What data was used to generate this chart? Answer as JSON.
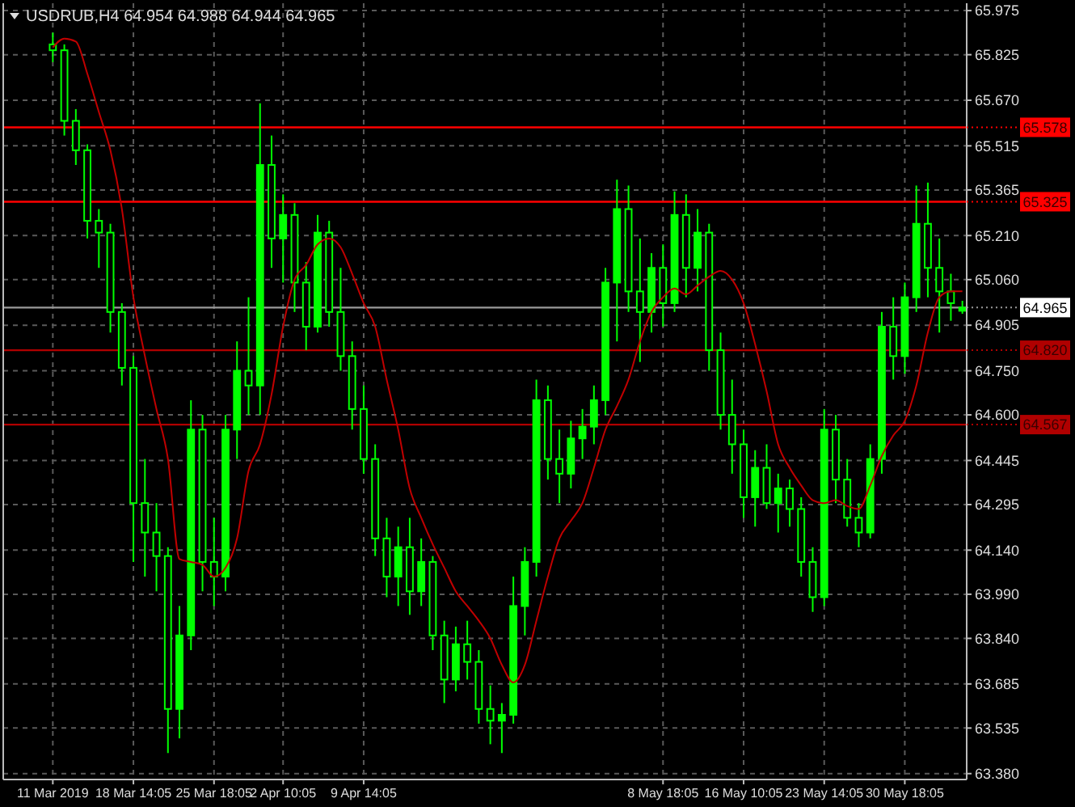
{
  "chart_data": {
    "type": "candlestick",
    "title": "USDRUB,H4  64.954 64.988 64.944 64.965",
    "categories": [
      "11 Mar 2019",
      null,
      null,
      null,
      null,
      null,
      null,
      "18 Mar 14:05",
      null,
      null,
      null,
      null,
      null,
      null,
      "25 Mar 18:05",
      null,
      null,
      null,
      null,
      null,
      "2 Apr 10:05",
      null,
      null,
      null,
      null,
      null,
      null,
      "9 Apr 14:05",
      null,
      null,
      null,
      null,
      null,
      null,
      null,
      null,
      null,
      null,
      null,
      null,
      null,
      null,
      null,
      null,
      null,
      null,
      null,
      null,
      null,
      null,
      null,
      null,
      null,
      "8 May 18:05",
      null,
      null,
      null,
      null,
      null,
      null,
      "16 May 10:05",
      null,
      null,
      null,
      null,
      null,
      null,
      "23 May 14:05",
      null,
      null,
      null,
      null,
      null,
      null,
      "30 May 18:05",
      null,
      null,
      null,
      null,
      null
    ],
    "series": [
      {
        "color": "#00ff00",
        "ohlc": [
          [
            65.86,
            65.9,
            65.8,
            65.84
          ],
          [
            65.84,
            65.86,
            65.55,
            65.6
          ],
          [
            65.6,
            65.64,
            65.45,
            65.5
          ],
          [
            65.5,
            65.52,
            65.2,
            65.26
          ],
          [
            65.26,
            65.3,
            65.1,
            65.22
          ],
          [
            65.22,
            65.25,
            64.88,
            64.95
          ],
          [
            64.95,
            64.98,
            64.7,
            64.76
          ],
          [
            64.76,
            64.8,
            64.1,
            64.3
          ],
          [
            64.3,
            64.45,
            64.05,
            64.2
          ],
          [
            64.2,
            64.3,
            64.0,
            64.12
          ],
          [
            64.12,
            64.15,
            63.45,
            63.6
          ],
          [
            63.6,
            63.95,
            63.5,
            63.85
          ],
          [
            63.85,
            64.65,
            63.8,
            64.55
          ],
          [
            64.55,
            64.6,
            64.0,
            64.1
          ],
          [
            64.1,
            64.25,
            63.95,
            64.05
          ],
          [
            64.05,
            64.6,
            64.0,
            64.55
          ],
          [
            64.55,
            64.85,
            64.45,
            64.75
          ],
          [
            64.75,
            65.0,
            64.6,
            64.7
          ],
          [
            64.7,
            65.66,
            64.6,
            65.45
          ],
          [
            65.45,
            65.55,
            65.1,
            65.2
          ],
          [
            65.2,
            65.35,
            65.05,
            65.28
          ],
          [
            65.28,
            65.32,
            64.95,
            65.05
          ],
          [
            65.05,
            65.12,
            64.82,
            64.9
          ],
          [
            64.9,
            65.28,
            64.88,
            65.22
          ],
          [
            65.22,
            65.26,
            64.9,
            64.95
          ],
          [
            64.95,
            65.1,
            64.75,
            64.8
          ],
          [
            64.8,
            64.85,
            64.55,
            64.62
          ],
          [
            64.62,
            64.7,
            64.4,
            64.45
          ],
          [
            64.45,
            64.5,
            64.12,
            64.18
          ],
          [
            64.18,
            64.25,
            63.98,
            64.05
          ],
          [
            64.05,
            64.22,
            63.95,
            64.15
          ],
          [
            64.15,
            64.25,
            63.92,
            64.0
          ],
          [
            64.0,
            64.18,
            63.95,
            64.1
          ],
          [
            64.1,
            64.12,
            63.8,
            63.85
          ],
          [
            63.85,
            63.9,
            63.62,
            63.7
          ],
          [
            63.7,
            63.88,
            63.66,
            63.82
          ],
          [
            63.82,
            63.9,
            63.7,
            63.76
          ],
          [
            63.76,
            63.8,
            63.55,
            63.6
          ],
          [
            63.6,
            63.68,
            63.48,
            63.56
          ],
          [
            63.56,
            63.62,
            63.45,
            63.58
          ],
          [
            63.58,
            64.05,
            63.55,
            63.95
          ],
          [
            63.95,
            64.15,
            63.85,
            64.1
          ],
          [
            64.1,
            64.72,
            64.05,
            64.65
          ],
          [
            64.65,
            64.7,
            64.38,
            64.45
          ],
          [
            64.45,
            64.55,
            64.3,
            64.4
          ],
          [
            64.4,
            64.58,
            64.35,
            64.52
          ],
          [
            64.52,
            64.62,
            64.45,
            64.56
          ],
          [
            64.56,
            64.7,
            64.5,
            64.65
          ],
          [
            64.65,
            65.1,
            64.6,
            65.05
          ],
          [
            65.05,
            65.4,
            64.85,
            65.3
          ],
          [
            65.3,
            65.38,
            64.95,
            65.02
          ],
          [
            65.02,
            65.2,
            64.78,
            64.95
          ],
          [
            64.95,
            65.15,
            64.88,
            65.1
          ],
          [
            65.1,
            65.18,
            64.9,
            64.98
          ],
          [
            64.98,
            65.36,
            64.95,
            65.28
          ],
          [
            65.28,
            65.35,
            65.0,
            65.1
          ],
          [
            65.1,
            65.3,
            65.02,
            65.22
          ],
          [
            65.22,
            65.25,
            64.75,
            64.82
          ],
          [
            64.82,
            64.88,
            64.55,
            64.6
          ],
          [
            64.6,
            64.72,
            64.4,
            64.5
          ],
          [
            64.5,
            64.55,
            64.25,
            64.32
          ],
          [
            64.32,
            64.48,
            64.22,
            64.42
          ],
          [
            64.42,
            64.5,
            64.28,
            64.3
          ],
          [
            64.3,
            64.4,
            64.2,
            64.35
          ],
          [
            64.35,
            64.38,
            64.22,
            64.28
          ],
          [
            64.28,
            64.32,
            64.05,
            64.1
          ],
          [
            64.1,
            64.15,
            63.93,
            63.98
          ],
          [
            63.98,
            64.62,
            63.95,
            64.55
          ],
          [
            64.55,
            64.6,
            64.3,
            64.38
          ],
          [
            64.38,
            64.45,
            64.22,
            64.25
          ],
          [
            64.25,
            64.3,
            64.15,
            64.2
          ],
          [
            64.2,
            64.5,
            64.18,
            64.45
          ],
          [
            64.45,
            64.95,
            64.4,
            64.9
          ],
          [
            64.9,
            65.0,
            64.72,
            64.8
          ],
          [
            64.8,
            65.05,
            64.74,
            65.0
          ],
          [
            65.0,
            65.38,
            64.95,
            65.25
          ],
          [
            65.25,
            65.39,
            65.0,
            65.1
          ],
          [
            65.1,
            65.2,
            64.88,
            65.02
          ],
          [
            65.02,
            65.08,
            64.92,
            64.98
          ],
          [
            64.954,
            64.988,
            64.944,
            64.965
          ]
        ]
      },
      {
        "type": "line",
        "color": "#c00000",
        "values": [
          65.85,
          65.88,
          65.87,
          65.76,
          65.63,
          65.5,
          65.3,
          65.0,
          64.8,
          64.62,
          64.45,
          64.11,
          64.1,
          64.09,
          64.05,
          64.08,
          64.18,
          64.41,
          64.5,
          64.67,
          64.9,
          65.06,
          65.11,
          65.18,
          65.2,
          65.17,
          65.08,
          64.98,
          64.9,
          64.72,
          64.55,
          64.35,
          64.25,
          64.16,
          64.08,
          64.0,
          63.95,
          63.9,
          63.84,
          63.75,
          63.69,
          63.75,
          63.9,
          64.05,
          64.18,
          64.24,
          64.3,
          64.42,
          64.55,
          64.63,
          64.72,
          64.85,
          64.95,
          65.0,
          65.03,
          65.01,
          65.04,
          65.07,
          65.09,
          65.06,
          64.98,
          64.84,
          64.68,
          64.5,
          64.42,
          64.36,
          64.31,
          64.3,
          64.31,
          64.29,
          64.28,
          64.36,
          64.46,
          64.53,
          64.58,
          64.7,
          64.88,
          65.0,
          65.02,
          65.02
        ]
      }
    ],
    "ylim": [
      63.36,
      66.0
    ],
    "yticks": [
      65.975,
      65.825,
      {
        "value": 65.67,
        "label": "65.670"
      },
      65.515,
      65.365,
      {
        "value": 65.21,
        "label": "65.210"
      },
      {
        "value": 65.06,
        "label": "65.060"
      },
      64.905,
      {
        "value": 64.75,
        "label": "64.750"
      },
      {
        "value": 64.6,
        "label": "64.600"
      },
      64.445,
      64.295,
      {
        "value": 64.14,
        "label": "64.140"
      },
      {
        "value": 63.99,
        "label": "63.990"
      },
      {
        "value": 63.84,
        "label": "63.840"
      },
      63.685,
      63.535,
      {
        "value": 63.38,
        "label": "63.380"
      }
    ],
    "ref_lines": [
      {
        "axis": "y",
        "value": 65.578,
        "label": "65.578",
        "color": "#ff0000"
      },
      {
        "axis": "y",
        "value": 65.325,
        "label": "65.325",
        "color": "#ff0000"
      },
      {
        "axis": "y",
        "value": 64.965,
        "label": "64.965",
        "color": "#9a9a9a"
      },
      {
        "axis": "y",
        "value": 64.82,
        "label": "64.820",
        "color": "#b00000"
      },
      {
        "axis": "y",
        "value": 64.567,
        "label": "64.567",
        "color": "#b00000"
      }
    ],
    "grid": true
  }
}
